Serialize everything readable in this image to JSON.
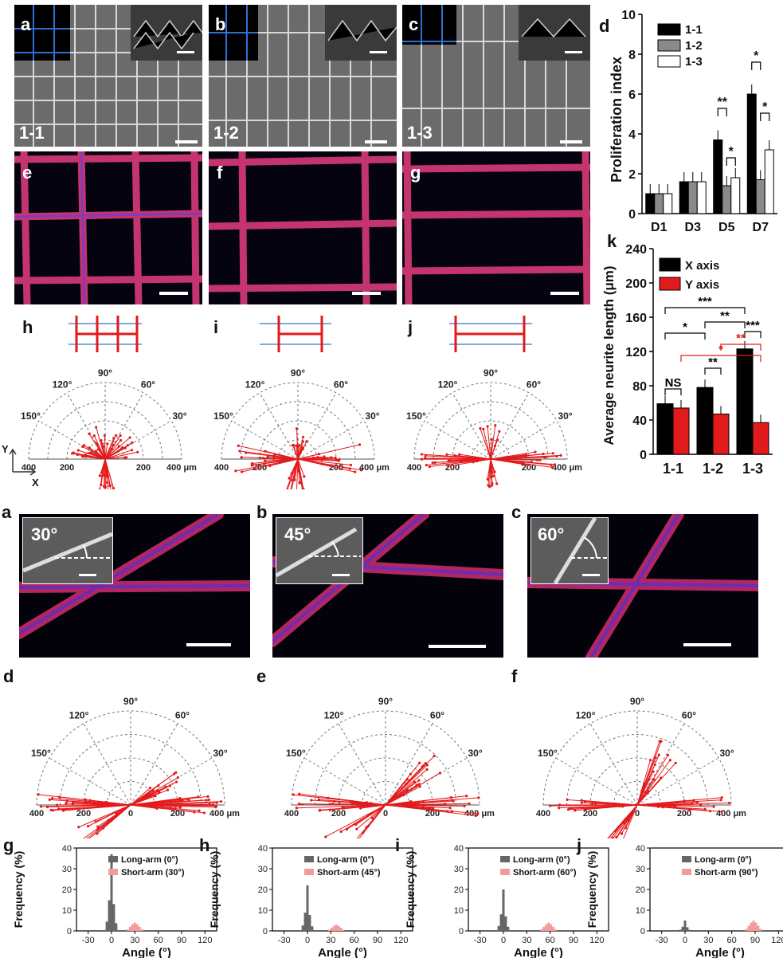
{
  "top": {
    "sem_panels": [
      {
        "label": "a",
        "sublabel": "1-1"
      },
      {
        "label": "b",
        "sublabel": "1-2"
      },
      {
        "label": "c",
        "sublabel": "1-3"
      }
    ],
    "fluor_panels": [
      {
        "label": "e"
      },
      {
        "label": "f"
      },
      {
        "label": "g"
      }
    ],
    "polar_panels": [
      {
        "label": "h"
      },
      {
        "label": "i"
      },
      {
        "label": "j"
      }
    ],
    "polar_angle_labels": [
      "150°",
      "120°",
      "90°",
      "60°",
      "30°"
    ],
    "polar_axis_ticks": [
      "400",
      "200",
      "200",
      "400 μm"
    ],
    "axes_Y": "Y",
    "axes_X": "X"
  },
  "chart_d": {
    "label": "d",
    "chart_data": {
      "type": "bar",
      "categories": [
        "D1",
        "D3",
        "D5",
        "D7"
      ],
      "series": [
        {
          "name": "1-1",
          "values": [
            1.0,
            1.6,
            3.7,
            6.0
          ]
        },
        {
          "name": "1-2",
          "values": [
            1.0,
            1.6,
            1.4,
            1.7
          ]
        },
        {
          "name": "1-3",
          "values": [
            1.0,
            1.6,
            1.8,
            3.2
          ]
        }
      ],
      "ylabel": "Proliferation index",
      "ylim": [
        0,
        10
      ],
      "yticks": [
        "0",
        "2",
        "4",
        "6",
        "8",
        "10"
      ],
      "annotations": [
        "**",
        "*",
        "*",
        "*"
      ]
    }
  },
  "chart_k": {
    "label": "k",
    "chart_data": {
      "type": "bar",
      "categories": [
        "1-1",
        "1-2",
        "1-3"
      ],
      "series": [
        {
          "name": "X axis",
          "values": [
            59,
            78,
            123
          ]
        },
        {
          "name": "Y axis",
          "values": [
            54,
            47,
            37
          ]
        }
      ],
      "ylabel": "Average neurite length (μm)",
      "ylim": [
        0,
        240
      ],
      "yticks": [
        "0",
        "40",
        "80",
        "120",
        "160",
        "200",
        "240"
      ],
      "annotations": [
        "NS",
        "**",
        "***",
        "*",
        "**",
        "***",
        "**",
        "*"
      ]
    }
  },
  "bottom": {
    "fluor_panels": [
      {
        "label": "a",
        "angle": "30°"
      },
      {
        "label": "b",
        "angle": "45°"
      },
      {
        "label": "c",
        "angle": "60°"
      }
    ],
    "polar_panels": [
      {
        "label": "d"
      },
      {
        "label": "e"
      },
      {
        "label": "f"
      }
    ],
    "polar_angle_labels": [
      "150°",
      "120°",
      "90°",
      "60°",
      "30°"
    ],
    "polar_axis_ticks": [
      "400",
      "200",
      "0",
      "200",
      "400 μm"
    ],
    "hist_panels": [
      {
        "label": "g",
        "legend_long": "Long-arm (0°)",
        "legend_short": "Short-arm (30°)",
        "long_peak": 37,
        "short_center": 30,
        "short_peak": 4
      },
      {
        "label": "h",
        "legend_long": "Long-arm (0°)",
        "legend_short": "Short-arm (45°)",
        "long_peak": 22,
        "short_center": 37,
        "short_peak": 3
      },
      {
        "label": "i",
        "legend_long": "Long-arm (0°)",
        "legend_short": "Short-arm (60°)",
        "long_peak": 20,
        "short_center": 58,
        "short_peak": 4
      },
      {
        "label": "j",
        "legend_long": "Long-arm (0°)",
        "legend_short": "Short-arm (90°)",
        "long_peak": 5,
        "short_center": 88,
        "short_peak": 5
      }
    ],
    "hist_ylabel": "Frequency (%)",
    "hist_xlabel": "Angle (°)",
    "hist_yticks": [
      "0",
      "10",
      "20",
      "30",
      "40"
    ],
    "hist_xticks": [
      "-30",
      "0",
      "30",
      "60",
      "90",
      "120"
    ]
  },
  "colors": {
    "red": "#e31a1c",
    "blue": "#2d6fd6",
    "grey": "#7f7f7f",
    "pink": "#f59a9a",
    "black": "#000000"
  }
}
